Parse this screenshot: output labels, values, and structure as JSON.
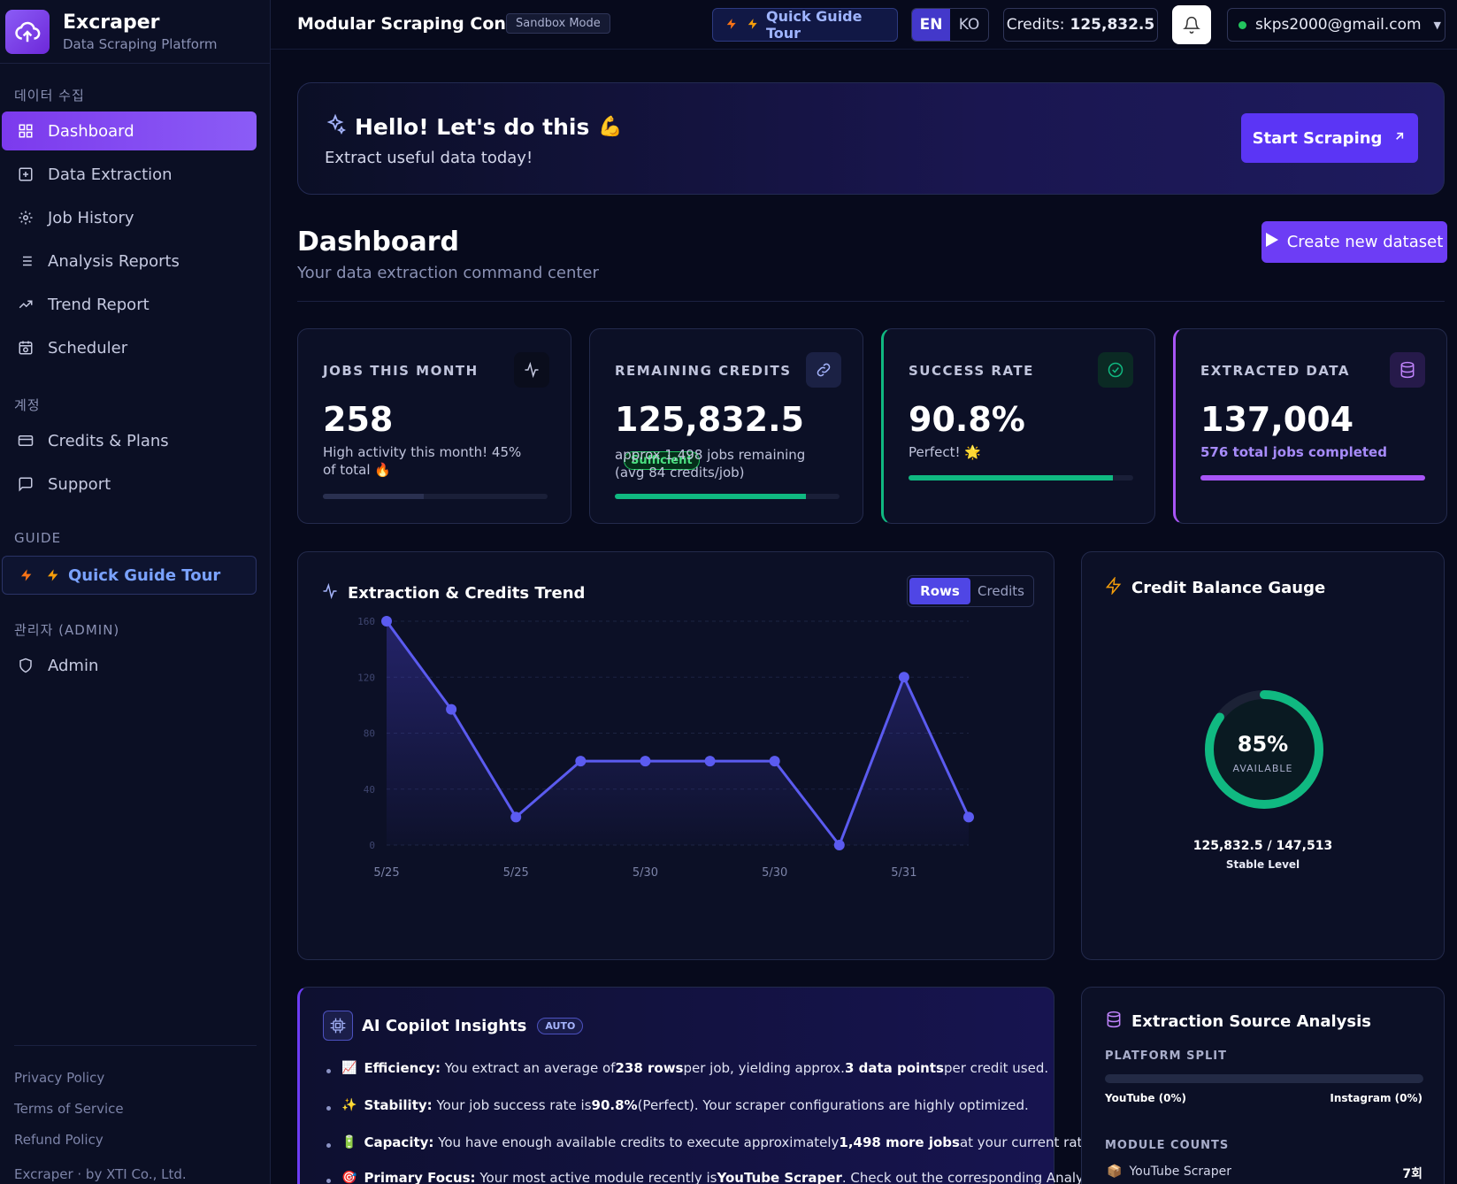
{
  "brand": {
    "name": "Excraper",
    "subtitle": "Data Scraping Platform"
  },
  "sidebar": {
    "sections": {
      "data": "데이터 수집",
      "account": "계정",
      "guide": "GUIDE",
      "admin": "관리자 (ADMIN)"
    },
    "items": [
      {
        "label": "Dashboard",
        "icon": "grid-icon"
      },
      {
        "label": "Data Extraction",
        "icon": "plus-square-icon"
      },
      {
        "label": "Job History",
        "icon": "gear-icon"
      },
      {
        "label": "Analysis Reports",
        "icon": "list-icon"
      },
      {
        "label": "Trend Report",
        "icon": "trend-icon"
      },
      {
        "label": "Scheduler",
        "icon": "calendar-clock-icon"
      }
    ],
    "account_items": [
      {
        "label": "Credits & Plans",
        "icon": "card-icon"
      },
      {
        "label": "Support",
        "icon": "chat-icon"
      }
    ],
    "guide_item": "Quick Guide Tour",
    "admin_item": "Admin",
    "footer": [
      "Privacy Policy",
      "Terms of Service",
      "Refund Policy",
      "Excraper · by XTI Co., Ltd."
    ]
  },
  "topbar": {
    "title": "Modular Scraping Console",
    "sandbox": "Sandbox Mode",
    "guide": "Quick Guide Tour",
    "lang_en": "EN",
    "lang_ko": "KO",
    "credits_label": "Credits:",
    "credits_value": "125,832.5",
    "user_email": "skps2000@gmail.com"
  },
  "hero": {
    "title": "Hello! Let's do this",
    "subtitle": "Extract useful data today!",
    "button": "Start Scraping"
  },
  "page": {
    "title": "Dashboard",
    "subtitle": "Your data extraction command center",
    "create_button": "Create new dataset"
  },
  "stats": [
    {
      "label": "JOBS THIS MONTH",
      "value": "258",
      "note": "High activity this month! 45% of total",
      "progress": 0.45,
      "color": "#2a3050"
    },
    {
      "label": "REMAINING CREDITS",
      "value": "125,832.5",
      "badge": "Sufficient",
      "note": "approx 1,498 jobs remaining (avg 84 credits/job)",
      "progress": 0.85,
      "color": "#10b981"
    },
    {
      "label": "SUCCESS RATE",
      "value": "90.8%",
      "note": "Perfect!",
      "progress": 0.908,
      "color": "#10b981"
    },
    {
      "label": "EXTRACTED DATA",
      "value": "137,004",
      "note": "576 total jobs completed",
      "progress": 1.0,
      "color": "#a855f7"
    }
  ],
  "chart_card": {
    "title": "Extraction & Credits Trend",
    "toggle_rows": "Rows",
    "toggle_credits": "Credits"
  },
  "chart_data": {
    "type": "area",
    "x_ticks": [
      "5/25",
      "5/25",
      "5/30",
      "5/30",
      "5/31"
    ],
    "values": [
      160,
      97,
      20,
      60,
      60,
      60,
      60,
      0,
      120,
      20
    ],
    "ylim": [
      0,
      160
    ],
    "y_ticks": [
      0,
      40,
      80,
      120,
      160
    ],
    "grid": true,
    "color": "#5b5bf0"
  },
  "gauge": {
    "title": "Credit Balance Gauge",
    "percent_label": "85%",
    "percent": 0.85,
    "caption": "AVAILABLE",
    "balance": "125,832.5 / 147,513",
    "level": "Stable Level"
  },
  "insights": {
    "title": "AI Copilot Insights",
    "tag": "AUTO",
    "lines": [
      {
        "emoji": "📈",
        "head": "Efficiency:",
        "parts": [
          "You extract an average of ",
          "238 rows",
          " per job, yielding approx. ",
          "3 data points",
          " per credit used."
        ]
      },
      {
        "emoji": "✨",
        "head": "Stability:",
        "parts": [
          "Your job success rate is ",
          "90.8%",
          " (Perfect). Your scraper configurations are highly optimized.",
          "",
          ""
        ]
      },
      {
        "emoji": "🔋",
        "head": "Capacity:",
        "parts": [
          "You have enough available credits to execute approximately ",
          "1,498 more jobs",
          " at your current rate.",
          "",
          ""
        ]
      },
      {
        "emoji": "🎯",
        "head": "Primary Focus:",
        "parts": [
          "Your most active module recently is ",
          "YouTube Scraper",
          ". Check out the corresponding Analysis",
          "",
          ""
        ]
      }
    ]
  },
  "source": {
    "title": "Extraction Source Analysis",
    "split_label": "PLATFORM SPLIT",
    "youtube": "YouTube (0%)",
    "instagram": "Instagram (0%)",
    "counts_label": "MODULE COUNTS",
    "module_name": "YouTube Scraper",
    "module_count": "7회"
  }
}
